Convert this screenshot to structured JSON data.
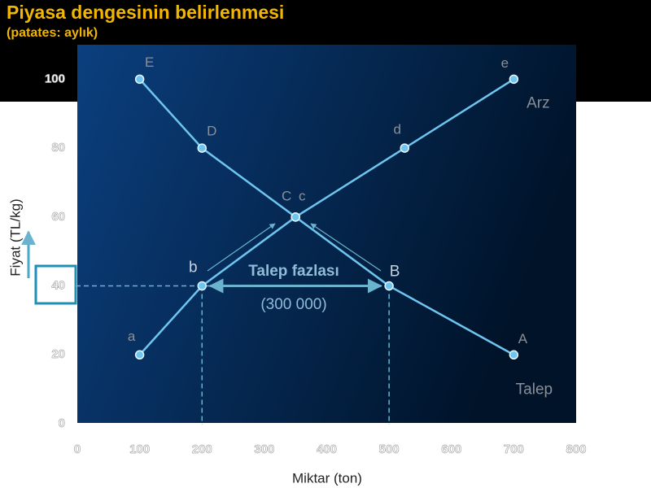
{
  "chart_data": {
    "type": "line",
    "title": "Piyasa dengesinin belirlenmesi",
    "subtitle": "(patates: aylık)",
    "x_label": "Miktar (ton)",
    "y_label": "Fiyat (TL/kg)",
    "xlim": [
      0,
      800
    ],
    "ylim": [
      0,
      110
    ],
    "xticks": [
      0,
      100,
      200,
      300,
      400,
      500,
      600,
      700,
      800
    ],
    "yticks": [
      0,
      20,
      40,
      60,
      80,
      100
    ],
    "series": [
      {
        "name": "Arz",
        "color": "#6ec6f0",
        "x": [
          100,
          200,
          350,
          525,
          700
        ],
        "values": [
          20,
          40,
          60,
          80,
          100
        ],
        "point_labels": [
          "a",
          "b",
          "c",
          "d",
          "e"
        ]
      },
      {
        "name": "Talep",
        "color": "#6ec6f0",
        "x": [
          100,
          200,
          350,
          500,
          700
        ],
        "values": [
          100,
          80,
          60,
          40,
          20
        ],
        "point_labels": [
          "E",
          "D",
          "C",
          "B",
          "A"
        ]
      }
    ],
    "reference": {
      "price": 40,
      "quantities": [
        200,
        500
      ]
    },
    "annotations": [
      "Talep fazlası",
      "(300 000)"
    ]
  }
}
